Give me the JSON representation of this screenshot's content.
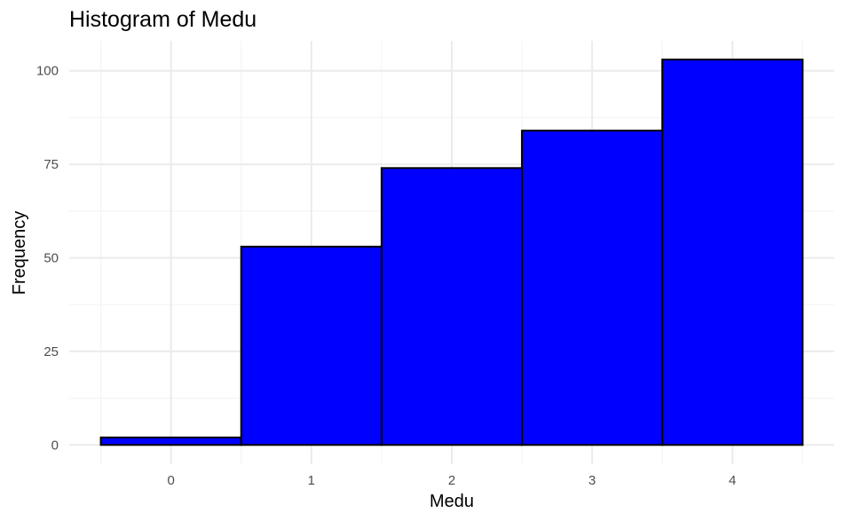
{
  "chart_data": {
    "type": "bar",
    "subtype": "histogram",
    "title": "Histogram of Medu",
    "xlabel": "Medu",
    "ylabel": "Frequency",
    "categories": [
      "0",
      "1",
      "2",
      "3",
      "4"
    ],
    "x": [
      0,
      1,
      2,
      3,
      4
    ],
    "values": [
      2,
      53,
      74,
      84,
      103
    ],
    "bin_width": 1,
    "xlim": [
      -0.5,
      4.5
    ],
    "ylim": [
      0,
      108
    ],
    "x_ticks": [
      0,
      1,
      2,
      3,
      4
    ],
    "y_ticks": [
      0,
      25,
      50,
      75,
      100
    ],
    "y_tick_labels": [
      "0",
      "25",
      "50",
      "75",
      "100"
    ],
    "grid": true,
    "legend": "none",
    "fill_color": "#0000ff",
    "border_color": "#000000",
    "grid_major_color": "#ebebeb",
    "grid_minor_color": "#f4f4f4"
  }
}
